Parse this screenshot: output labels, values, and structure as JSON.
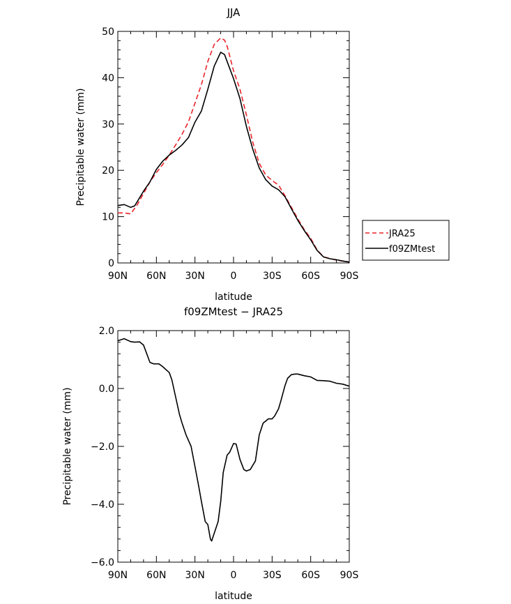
{
  "chart_data": [
    {
      "type": "line",
      "title": "JJA",
      "xlabel": "latitude",
      "ylabel": "Precipitable water (mm)",
      "xlim": [
        90,
        -90
      ],
      "ylim": [
        0,
        50
      ],
      "x_ticks": [
        90,
        60,
        30,
        0,
        -30,
        -60,
        -90
      ],
      "x_tick_labels": [
        "90N",
        "60N",
        "30N",
        "0",
        "30S",
        "60S",
        "90S"
      ],
      "y_ticks": [
        0,
        10,
        20,
        30,
        40,
        50
      ],
      "y_tick_labels": [
        "0",
        "10",
        "20",
        "30",
        "40",
        "50"
      ],
      "legend": {
        "placement": "right-outside",
        "entries": [
          "JRA25",
          "f09ZMtest"
        ]
      },
      "grid": false,
      "series": [
        {
          "name": "JRA25",
          "color": "#e8232a",
          "dash": "dashed",
          "x": [
            90,
            85,
            80,
            75,
            70,
            65,
            60,
            55,
            50,
            45,
            40,
            35,
            30,
            25,
            20,
            15,
            10,
            7,
            5,
            0,
            -5,
            -10,
            -15,
            -20,
            -25,
            -30,
            -35,
            -40,
            -45,
            -50,
            -55,
            -60,
            -65,
            -70,
            -75,
            -80,
            -85,
            -90
          ],
          "y": [
            10.8,
            10.8,
            10.6,
            12.5,
            15.0,
            17.5,
            19.5,
            21.3,
            23.3,
            25.5,
            27.8,
            30.5,
            34.5,
            38.5,
            43.5,
            47.2,
            48.6,
            48.1,
            46.8,
            41.5,
            37.5,
            32.0,
            26.0,
            21.5,
            19.0,
            17.8,
            16.8,
            14.5,
            12.0,
            9.5,
            7.2,
            5.3,
            2.8,
            1.3,
            1.0,
            0.6,
            0.4,
            0.2
          ]
        },
        {
          "name": "f09ZMtest",
          "color": "#000000",
          "dash": "solid",
          "x": [
            90,
            85,
            80,
            77,
            75,
            70,
            65,
            60,
            55,
            50,
            45,
            40,
            35,
            30,
            25,
            20,
            15,
            10,
            7,
            5,
            0,
            -5,
            -10,
            -15,
            -20,
            -25,
            -30,
            -35,
            -40,
            -45,
            -50,
            -55,
            -60,
            -65,
            -70,
            -75,
            -80,
            -85,
            -90
          ],
          "y": [
            12.4,
            12.6,
            12.0,
            12.3,
            13.2,
            15.5,
            17.5,
            20.2,
            22.0,
            23.3,
            24.3,
            25.5,
            27.1,
            30.4,
            32.8,
            37.5,
            42.5,
            45.5,
            45.0,
            43.5,
            39.8,
            35.5,
            29.5,
            24.5,
            20.5,
            18.0,
            16.6,
            15.8,
            14.3,
            11.7,
            9.2,
            7.0,
            5.0,
            2.7,
            1.3,
            0.9,
            0.7,
            0.4,
            0.2
          ]
        }
      ]
    },
    {
      "type": "line",
      "title": "f09ZMtest − JRA25",
      "xlabel": "latitude",
      "ylabel": "Precipitable water (mm)",
      "xlim": [
        90,
        -90
      ],
      "ylim": [
        -6.0,
        2.0
      ],
      "x_ticks": [
        90,
        60,
        30,
        0,
        -30,
        -60,
        -90
      ],
      "x_tick_labels": [
        "90N",
        "60N",
        "30N",
        "0",
        "30S",
        "60S",
        "90S"
      ],
      "y_ticks": [
        -6.0,
        -4.0,
        -2.0,
        0.0,
        2.0
      ],
      "y_tick_labels": [
        "−6.0",
        "−4.0",
        "−2.0",
        "0.0",
        "2.0"
      ],
      "grid": false,
      "series": [
        {
          "color": "#000000",
          "dash": "solid",
          "x": [
            90,
            85,
            80,
            77,
            73,
            70,
            65,
            62,
            58,
            55,
            50,
            48,
            45,
            42,
            40,
            37,
            33,
            30,
            27,
            25,
            22,
            20,
            18,
            17,
            15,
            12,
            10,
            8,
            5,
            3,
            0,
            -2,
            -5,
            -8,
            -10,
            -13,
            -17,
            -20,
            -23,
            -27,
            -30,
            -32,
            -35,
            -37,
            -40,
            -42,
            -45,
            -48,
            -50,
            -55,
            -60,
            -65,
            -70,
            -75,
            -80,
            -85,
            -90
          ],
          "y": [
            1.65,
            1.72,
            1.62,
            1.6,
            1.61,
            1.5,
            0.9,
            0.85,
            0.85,
            0.75,
            0.55,
            0.3,
            -0.3,
            -0.9,
            -1.2,
            -1.6,
            -2.0,
            -2.7,
            -3.4,
            -3.9,
            -4.6,
            -4.7,
            -5.2,
            -5.27,
            -5.0,
            -4.6,
            -3.9,
            -2.9,
            -2.3,
            -2.2,
            -1.9,
            -1.92,
            -2.45,
            -2.8,
            -2.85,
            -2.8,
            -2.5,
            -1.6,
            -1.2,
            -1.05,
            -1.05,
            -0.95,
            -0.7,
            -0.4,
            0.1,
            0.35,
            0.48,
            0.5,
            0.5,
            0.44,
            0.4,
            0.28,
            0.27,
            0.25,
            0.18,
            0.15,
            0.08
          ]
        }
      ]
    }
  ]
}
